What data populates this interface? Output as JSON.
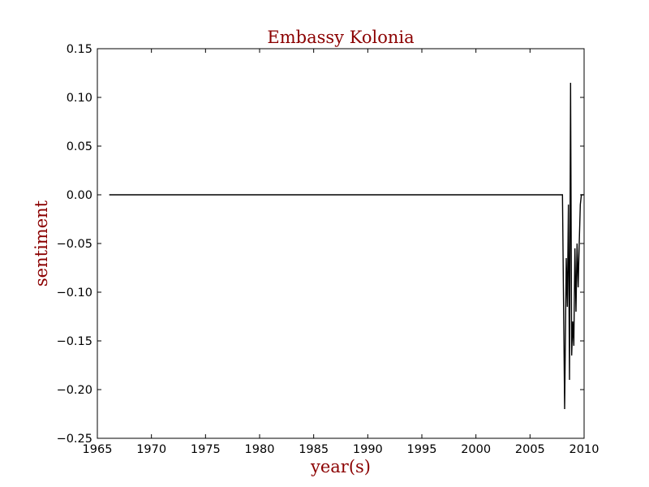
{
  "chart_data": {
    "type": "line",
    "title": "Embassy Kolonia",
    "xlabel": "year(s)",
    "ylabel": "sentiment",
    "xlim": [
      1965,
      2010
    ],
    "ylim": [
      -0.25,
      0.15
    ],
    "xticks": [
      1965,
      1970,
      1975,
      1980,
      1985,
      1990,
      1995,
      2000,
      2005,
      2010
    ],
    "xtick_labels": [
      "1965",
      "1970",
      "1975",
      "1980",
      "1985",
      "1990",
      "1995",
      "2000",
      "2005",
      "2010"
    ],
    "yticks": [
      0.15,
      0.1,
      0.05,
      0.0,
      -0.05,
      -0.1,
      -0.15,
      -0.2,
      -0.25
    ],
    "ytick_labels": [
      "0.15",
      "0.10",
      "0.05",
      "0.00",
      "−0.05",
      "−0.10",
      "−0.15",
      "−0.20",
      "−0.25"
    ],
    "grid": false,
    "colors": {
      "title": "#8b0000",
      "labels": "#8b0000",
      "line": "#000000",
      "axes": "#000000"
    },
    "series": [
      {
        "x": [
          1966.1,
          2008.0,
          2008.2,
          2008.35,
          2008.45,
          2008.55,
          2008.65,
          2008.75,
          2008.85,
          2008.95,
          2009.05,
          2009.15,
          2009.25,
          2009.35,
          2009.45,
          2009.55,
          2009.65,
          2009.75,
          2009.85,
          2009.95
        ],
        "y": [
          0.0,
          0.0,
          -0.22,
          -0.065,
          -0.115,
          -0.01,
          -0.19,
          0.115,
          -0.165,
          -0.13,
          -0.155,
          -0.055,
          -0.12,
          -0.05,
          -0.095,
          -0.05,
          -0.01,
          0.0,
          0.0,
          0.0
        ]
      }
    ]
  }
}
